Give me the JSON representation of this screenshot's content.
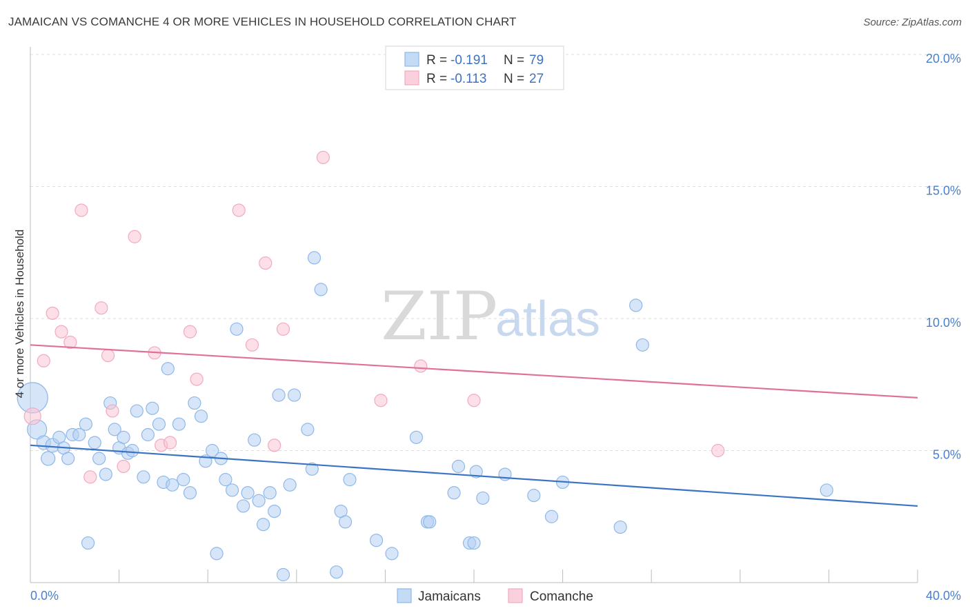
{
  "title": "JAMAICAN VS COMANCHE 4 OR MORE VEHICLES IN HOUSEHOLD CORRELATION CHART",
  "source": "Source: ZipAtlas.com",
  "watermark": {
    "zip": "ZIP",
    "atlas": "atlas"
  },
  "colors": {
    "blue": "#8fb8ea",
    "blue_line": "#3b73c4",
    "pink": "#f2a9c0",
    "pink_line": "#e0709a",
    "grid": "#dddddd"
  },
  "chart_data": {
    "type": "scatter",
    "title": "JAMAICAN VS COMANCHE 4 OR MORE VEHICLES IN HOUSEHOLD CORRELATION CHART",
    "xlabel": "",
    "ylabel": "4 or more Vehicles in Household",
    "xlim": [
      0,
      40
    ],
    "ylim": [
      0,
      20
    ],
    "x_ticks_labels": [
      "0.0%",
      "40.0%"
    ],
    "y_ticks": [
      5,
      10,
      15,
      20
    ],
    "y_ticks_labels": [
      "5.0%",
      "10.0%",
      "15.0%",
      "20.0%"
    ],
    "grid": true,
    "legend": {
      "placement": "top-center",
      "entries": [
        {
          "r_label": "R = ",
          "r_value": "-0.191",
          "n_label": "N = ",
          "n_value": "79"
        },
        {
          "r_label": "R = ",
          "r_value": "-0.113",
          "n_label": "N = ",
          "n_value": "27"
        }
      ]
    },
    "series": [
      {
        "name": "Jamaicans",
        "color": "#8fb8ea",
        "trend": {
          "x": [
            0,
            40
          ],
          "y": [
            5.2,
            2.9
          ]
        },
        "points": [
          [
            0.1,
            7.0,
            22
          ],
          [
            0.3,
            5.8,
            14
          ],
          [
            0.6,
            5.3,
            10
          ],
          [
            0.8,
            4.7,
            10
          ],
          [
            1.0,
            5.2,
            10
          ],
          [
            1.3,
            5.5,
            9
          ],
          [
            1.5,
            5.1,
            9
          ],
          [
            1.7,
            4.7,
            9
          ],
          [
            1.9,
            5.6,
            9
          ],
          [
            2.2,
            5.6,
            9
          ],
          [
            2.5,
            6.0,
            9
          ],
          [
            2.6,
            1.5,
            9
          ],
          [
            2.9,
            5.3,
            9
          ],
          [
            3.1,
            4.7,
            9
          ],
          [
            3.4,
            4.1,
            9
          ],
          [
            3.6,
            6.8,
            9
          ],
          [
            3.8,
            5.8,
            9
          ],
          [
            4.0,
            5.1,
            9
          ],
          [
            4.2,
            5.5,
            9
          ],
          [
            4.4,
            4.9,
            9
          ],
          [
            4.6,
            5.0,
            9
          ],
          [
            4.8,
            6.5,
            9
          ],
          [
            5.1,
            4.0,
            9
          ],
          [
            5.3,
            5.6,
            9
          ],
          [
            5.5,
            6.6,
            9
          ],
          [
            5.8,
            6.0,
            9
          ],
          [
            6.0,
            3.8,
            9
          ],
          [
            6.2,
            8.1,
            9
          ],
          [
            6.4,
            3.7,
            9
          ],
          [
            6.7,
            6.0,
            9
          ],
          [
            6.9,
            3.9,
            9
          ],
          [
            7.2,
            3.4,
            9
          ],
          [
            7.4,
            6.8,
            9
          ],
          [
            7.7,
            6.3,
            9
          ],
          [
            7.9,
            4.6,
            9
          ],
          [
            8.2,
            5.0,
            9
          ],
          [
            8.4,
            1.1,
            9
          ],
          [
            8.6,
            4.7,
            9
          ],
          [
            8.8,
            3.9,
            9
          ],
          [
            9.1,
            3.5,
            9
          ],
          [
            9.3,
            9.6,
            9
          ],
          [
            9.6,
            2.9,
            9
          ],
          [
            9.8,
            3.4,
            9
          ],
          [
            10.1,
            5.4,
            9
          ],
          [
            10.3,
            3.1,
            9
          ],
          [
            10.5,
            2.2,
            9
          ],
          [
            10.8,
            3.4,
            9
          ],
          [
            11.0,
            2.7,
            9
          ],
          [
            11.2,
            7.1,
            9
          ],
          [
            11.4,
            0.3,
            9
          ],
          [
            11.7,
            3.7,
            9
          ],
          [
            11.9,
            7.1,
            9
          ],
          [
            12.5,
            5.8,
            9
          ],
          [
            12.7,
            4.3,
            9
          ],
          [
            12.8,
            12.3,
            9
          ],
          [
            13.1,
            11.1,
            9
          ],
          [
            13.8,
            0.4,
            9
          ],
          [
            14.0,
            2.7,
            9
          ],
          [
            14.2,
            2.3,
            9
          ],
          [
            14.4,
            3.9,
            9
          ],
          [
            15.6,
            1.6,
            9
          ],
          [
            16.3,
            1.1,
            9
          ],
          [
            17.4,
            5.5,
            9
          ],
          [
            17.9,
            2.3,
            9
          ],
          [
            18.0,
            2.3,
            9
          ],
          [
            19.1,
            3.4,
            9
          ],
          [
            19.3,
            4.4,
            9
          ],
          [
            19.8,
            1.5,
            9
          ],
          [
            20.0,
            1.5,
            9
          ],
          [
            20.1,
            4.2,
            9
          ],
          [
            20.4,
            3.2,
            9
          ],
          [
            21.4,
            4.1,
            9
          ],
          [
            22.7,
            3.3,
            9
          ],
          [
            23.5,
            2.5,
            9
          ],
          [
            24.0,
            3.8,
            9
          ],
          [
            26.6,
            2.1,
            9
          ],
          [
            27.3,
            10.5,
            9
          ],
          [
            27.6,
            9.0,
            9
          ],
          [
            35.9,
            3.5,
            9
          ]
        ]
      },
      {
        "name": "Comanche",
        "color": "#f2a9c0",
        "trend": {
          "x": [
            0,
            40
          ],
          "y": [
            9.0,
            7.0
          ]
        },
        "points": [
          [
            0.1,
            6.3,
            12
          ],
          [
            0.6,
            8.4,
            9
          ],
          [
            1.0,
            10.2,
            9
          ],
          [
            1.4,
            9.5,
            9
          ],
          [
            1.8,
            9.1,
            9
          ],
          [
            2.3,
            14.1,
            9
          ],
          [
            2.7,
            4.0,
            9
          ],
          [
            3.2,
            10.4,
            9
          ],
          [
            3.5,
            8.6,
            9
          ],
          [
            3.7,
            6.5,
            9
          ],
          [
            4.2,
            4.4,
            9
          ],
          [
            4.7,
            13.1,
            9
          ],
          [
            5.6,
            8.7,
            9
          ],
          [
            5.9,
            5.2,
            9
          ],
          [
            6.3,
            5.3,
            9
          ],
          [
            7.2,
            9.5,
            9
          ],
          [
            7.5,
            7.7,
            9
          ],
          [
            9.4,
            14.1,
            9
          ],
          [
            10.0,
            9.0,
            9
          ],
          [
            10.6,
            12.1,
            9
          ],
          [
            11.0,
            5.2,
            9
          ],
          [
            11.4,
            9.6,
            9
          ],
          [
            13.2,
            16.1,
            9
          ],
          [
            15.8,
            6.9,
            9
          ],
          [
            17.6,
            8.2,
            9
          ],
          [
            20.0,
            6.9,
            9
          ],
          [
            31.0,
            5.0,
            9
          ]
        ]
      }
    ]
  }
}
